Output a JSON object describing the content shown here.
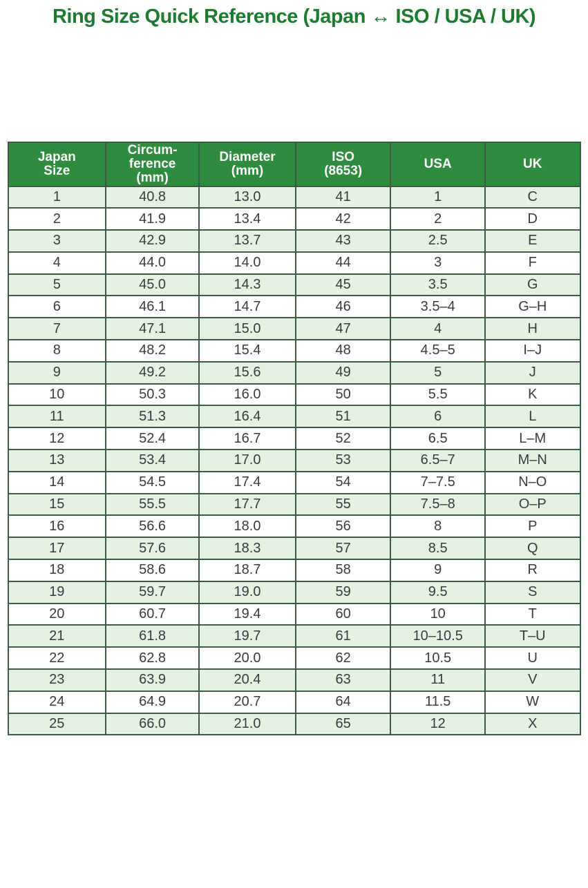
{
  "page_title": "Ring Size Quick Reference (Japan ↔ ISO / USA / UK)",
  "colors": {
    "title_green": "#1d7a31",
    "header_bg": "#2f8b3e",
    "header_text": "#ffffff",
    "grid_line": "#3e5a44",
    "row_stripe": "#e4f2e4",
    "row_plain": "#ffffff",
    "cell_text": "#3a3a3a"
  },
  "chart_data": {
    "type": "table",
    "title": "Ring Size Quick Reference (Japan ↔ ISO / USA / UK)",
    "columns": [
      "Japan\nSize",
      "Circum-\nference\n(mm)",
      "Diameter\n(mm)",
      "ISO\n(8653)",
      "USA",
      "UK"
    ],
    "rows": [
      [
        "1",
        "40.8",
        "13.0",
        "41",
        "1",
        "C"
      ],
      [
        "2",
        "41.9",
        "13.4",
        "42",
        "2",
        "D"
      ],
      [
        "3",
        "42.9",
        "13.7",
        "43",
        "2.5",
        "E"
      ],
      [
        "4",
        "44.0",
        "14.0",
        "44",
        "3",
        "F"
      ],
      [
        "5",
        "45.0",
        "14.3",
        "45",
        "3.5",
        "G"
      ],
      [
        "6",
        "46.1",
        "14.7",
        "46",
        "3.5–4",
        "G–H"
      ],
      [
        "7",
        "47.1",
        "15.0",
        "47",
        "4",
        "H"
      ],
      [
        "8",
        "48.2",
        "15.4",
        "48",
        "4.5–5",
        "I–J"
      ],
      [
        "9",
        "49.2",
        "15.6",
        "49",
        "5",
        "J"
      ],
      [
        "10",
        "50.3",
        "16.0",
        "50",
        "5.5",
        "K"
      ],
      [
        "11",
        "51.3",
        "16.4",
        "51",
        "6",
        "L"
      ],
      [
        "12",
        "52.4",
        "16.7",
        "52",
        "6.5",
        "L–M"
      ],
      [
        "13",
        "53.4",
        "17.0",
        "53",
        "6.5–7",
        "M–N"
      ],
      [
        "14",
        "54.5",
        "17.4",
        "54",
        "7–7.5",
        "N–O"
      ],
      [
        "15",
        "55.5",
        "17.7",
        "55",
        "7.5–8",
        "O–P"
      ],
      [
        "16",
        "56.6",
        "18.0",
        "56",
        "8",
        "P"
      ],
      [
        "17",
        "57.6",
        "18.3",
        "57",
        "8.5",
        "Q"
      ],
      [
        "18",
        "58.6",
        "18.7",
        "58",
        "9",
        "R"
      ],
      [
        "19",
        "59.7",
        "19.0",
        "59",
        "9.5",
        "S"
      ],
      [
        "20",
        "60.7",
        "19.4",
        "60",
        "10",
        "T"
      ],
      [
        "21",
        "61.8",
        "19.7",
        "61",
        "10–10.5",
        "T–U"
      ],
      [
        "22",
        "62.8",
        "20.0",
        "62",
        "10.5",
        "U"
      ],
      [
        "23",
        "63.9",
        "20.4",
        "63",
        "11",
        "V"
      ],
      [
        "24",
        "64.9",
        "20.7",
        "64",
        "11.5",
        "W"
      ],
      [
        "25",
        "66.0",
        "21.0",
        "65",
        "12",
        "X"
      ]
    ]
  }
}
